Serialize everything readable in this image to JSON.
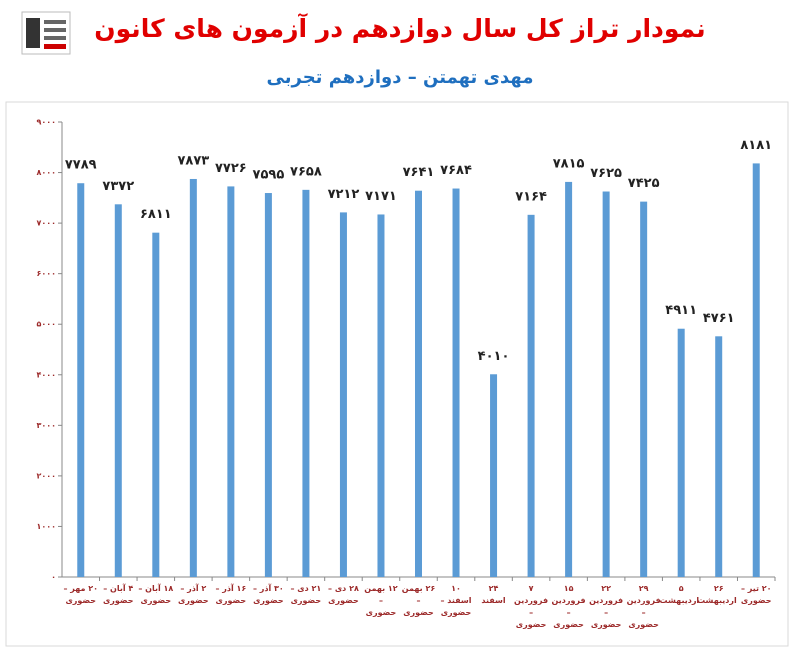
{
  "chart_data": {
    "type": "bar",
    "title": "نمودار تراز کل سال دوازدهم در آزمون های کانون",
    "subtitle": "مهدی تهمتن – دوازدهم تجربی",
    "categories": [
      "۲۰ مهر – حضوری",
      "۴ آبان – حضوری",
      "۱۸ آبان – حضوری",
      "۲ آذر – حضوری",
      "۱۶ آذر – حضوری",
      "۳۰ آذر – حضوری",
      "۲۱ دی – حضوری",
      "۲۸ دی – حضوری",
      "۱۲ بهمن – حضوری",
      "۲۶ بهمن – حضوری",
      "۱۰ اسفند – حضوری",
      "۲۴ اسفند",
      "۷ فروردین – حضوری",
      "۱۵ فروردین – حضوری",
      "۲۲ فروردین – حضوری",
      "۲۹ فروردین – حضوری",
      "۵ اردیبهشت",
      "۲۶ اردیبهشت",
      "۲۰ تیر – حضوری"
    ],
    "values": [
      7789,
      7372,
      6811,
      7873,
      7726,
      7595,
      7658,
      7212,
      7171,
      7641,
      7684,
      4010,
      7164,
      7815,
      7625,
      7425,
      4911,
      4761,
      8181
    ],
    "value_labels": [
      "۷۷۸۹",
      "۷۳۷۲",
      "۶۸۱۱",
      "۷۸۷۳",
      "۷۷۲۶",
      "۷۵۹۵",
      "۷۶۵۸",
      "۷۲۱۲",
      "۷۱۷۱",
      "۷۶۴۱",
      "۷۶۸۴",
      "۴۰۱۰",
      "۷۱۶۴",
      "۷۸۱۵",
      "۷۶۲۵",
      "۷۴۲۵",
      "۴۹۱۱",
      "۴۷۶۱",
      "۸۱۸۱"
    ],
    "color": "#5b9bd5",
    "ylim": [
      0,
      9000
    ],
    "yticks": [
      {
        "value": 0,
        "label": "۰"
      },
      {
        "value": 1000,
        "label": "۱۰۰۰"
      },
      {
        "value": 2000,
        "label": "۲۰۰۰"
      },
      {
        "value": 3000,
        "label": "۳۰۰۰"
      },
      {
        "value": 4000,
        "label": "۴۰۰۰"
      },
      {
        "value": 5000,
        "label": "۵۰۰۰"
      },
      {
        "value": 6000,
        "label": "۶۰۰۰"
      },
      {
        "value": 7000,
        "label": "۷۰۰۰"
      },
      {
        "value": 8000,
        "label": "۸۰۰۰"
      },
      {
        "value": 9000,
        "label": "۹۰۰۰"
      }
    ],
    "grid": false
  }
}
